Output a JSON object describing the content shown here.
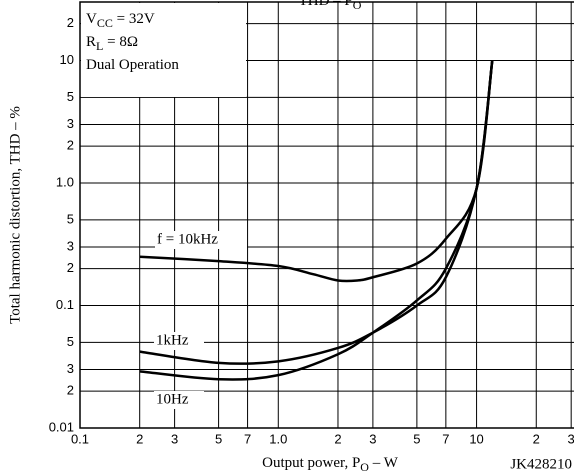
{
  "chart_data": {
    "type": "line",
    "title": {
      "main": "THD – P",
      "sub": "O"
    },
    "conditions": [
      {
        "main": "V",
        "sub": "CC",
        "rest": " = 32V"
      },
      {
        "main": "R",
        "sub": "L",
        "rest": " = 8Ω"
      },
      {
        "main": "Dual Operation"
      }
    ],
    "x_label": {
      "main": "Output power, P",
      "sub": "O",
      "rest": " – W"
    },
    "y_label": "Total harmonic distortion, THD – %",
    "code": "JK428210",
    "log_x": true,
    "log_y": true,
    "grid": true,
    "xlim": [
      0.1,
      31
    ],
    "ylim": [
      0.01,
      30
    ],
    "xticks": [
      0.1,
      {
        "value": 0.2,
        "label": "2"
      },
      {
        "value": 0.3,
        "label": "3"
      },
      {
        "value": 0.5,
        "label": "5"
      },
      {
        "value": 0.7,
        "label": "7"
      },
      {
        "value": 1,
        "label": "1.0"
      },
      {
        "value": 2,
        "label": "2"
      },
      {
        "value": 3,
        "label": "3"
      },
      {
        "value": 5,
        "label": "5"
      },
      {
        "value": 7,
        "label": "7"
      },
      10,
      {
        "value": 20,
        "label": "2"
      },
      {
        "value": 30,
        "label": "3"
      }
    ],
    "yticks": [
      0.01,
      {
        "value": 0.02,
        "label": "2"
      },
      {
        "value": 0.03,
        "label": "3"
      },
      {
        "value": 0.05,
        "label": "5"
      },
      0.1,
      {
        "value": 0.2,
        "label": "2"
      },
      {
        "value": 0.3,
        "label": "3"
      },
      {
        "value": 0.5,
        "label": "5"
      },
      {
        "value": 1,
        "label": "1.0"
      },
      {
        "value": 2,
        "label": "2"
      },
      {
        "value": 3,
        "label": "3"
      },
      {
        "value": 5,
        "label": "5"
      },
      10,
      {
        "value": 20,
        "label": "2"
      }
    ],
    "series": [
      {
        "name": "f = 10kHz",
        "color": "#000000",
        "x": [
          0.2,
          0.5,
          1,
          1.5,
          2,
          2.5,
          3,
          5,
          7,
          10,
          12
        ],
        "values": [
          0.25,
          0.23,
          0.21,
          0.18,
          0.16,
          0.16,
          0.17,
          0.22,
          0.35,
          0.9,
          10
        ]
      },
      {
        "name": "1kHz",
        "color": "#000000",
        "x": [
          0.2,
          0.5,
          1,
          2,
          3,
          5,
          7,
          10,
          12
        ],
        "values": [
          0.042,
          0.034,
          0.035,
          0.045,
          0.06,
          0.1,
          0.17,
          0.9,
          10
        ]
      },
      {
        "name": "10Hz",
        "color": "#000000",
        "x": [
          0.2,
          0.5,
          1,
          2,
          3,
          5,
          7,
          10,
          12
        ],
        "values": [
          0.029,
          0.025,
          0.027,
          0.04,
          0.06,
          0.11,
          0.2,
          0.9,
          10
        ]
      }
    ]
  }
}
